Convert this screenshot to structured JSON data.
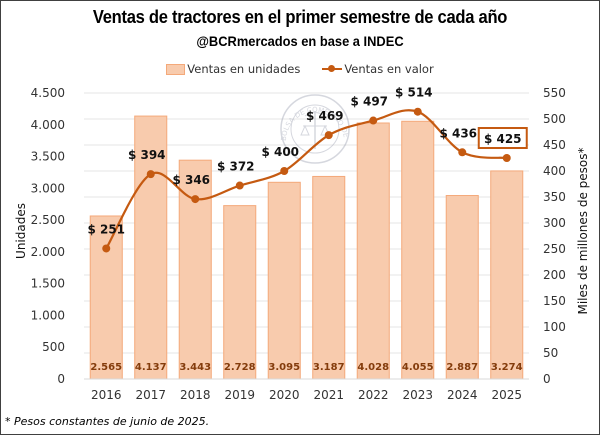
{
  "chart_data": {
    "type": "bar",
    "title": "Ventas de tractores en el primer semestre de cada año",
    "subtitle": "@BCRmercados en base a INDEC",
    "footnote": "* Pesos constantes de junio de 2025.",
    "categories": [
      "2016",
      "2017",
      "2018",
      "2019",
      "2020",
      "2021",
      "2022",
      "2023",
      "2024",
      "2025"
    ],
    "series": [
      {
        "name": "Ventas en unidades",
        "type": "bar",
        "axis": "left",
        "color": "#f8cbad",
        "values": [
          2565,
          4137,
          3443,
          2728,
          3095,
          3187,
          4028,
          4055,
          2887,
          3274
        ],
        "labels": [
          "2.565",
          "4.137",
          "3.443",
          "2.728",
          "3.095",
          "3.187",
          "4.028",
          "4.055",
          "2.887",
          "3.274"
        ]
      },
      {
        "name": "Ventas en valor",
        "type": "line",
        "axis": "right",
        "color": "#c55a11",
        "values": [
          251,
          394,
          346,
          372,
          400,
          469,
          497,
          514,
          436,
          425
        ],
        "labels": [
          "$ 251",
          "$ 394",
          "$ 346",
          "$ 372",
          "$ 400",
          "$ 469",
          "$ 497",
          "$ 514",
          "$ 436",
          "$ 425"
        ],
        "highlighted_label_index": 9
      }
    ],
    "ylabel": "Unidades",
    "ylim": [
      0,
      4500
    ],
    "yticks": [
      0,
      500,
      1000,
      1500,
      2000,
      2500,
      3000,
      3500,
      4000,
      4500
    ],
    "ytick_labels": [
      "0",
      "500",
      "1.000",
      "1.500",
      "2.000",
      "2.500",
      "3.000",
      "3.500",
      "4.000",
      "4.500"
    ],
    "y2label": "Miles de millones de pesos*",
    "y2lim": [
      0,
      550
    ],
    "y2ticks": [
      0,
      50,
      100,
      150,
      200,
      250,
      300,
      350,
      400,
      450,
      500,
      550
    ],
    "y2tick_labels": [
      "0",
      "50",
      "100",
      "150",
      "200",
      "250",
      "300",
      "350",
      "400",
      "450",
      "500",
      "550"
    ],
    "grid": true,
    "legend_position": "top-center",
    "watermark": "BOLSA DE COMERCIO DE ROSARIO"
  }
}
